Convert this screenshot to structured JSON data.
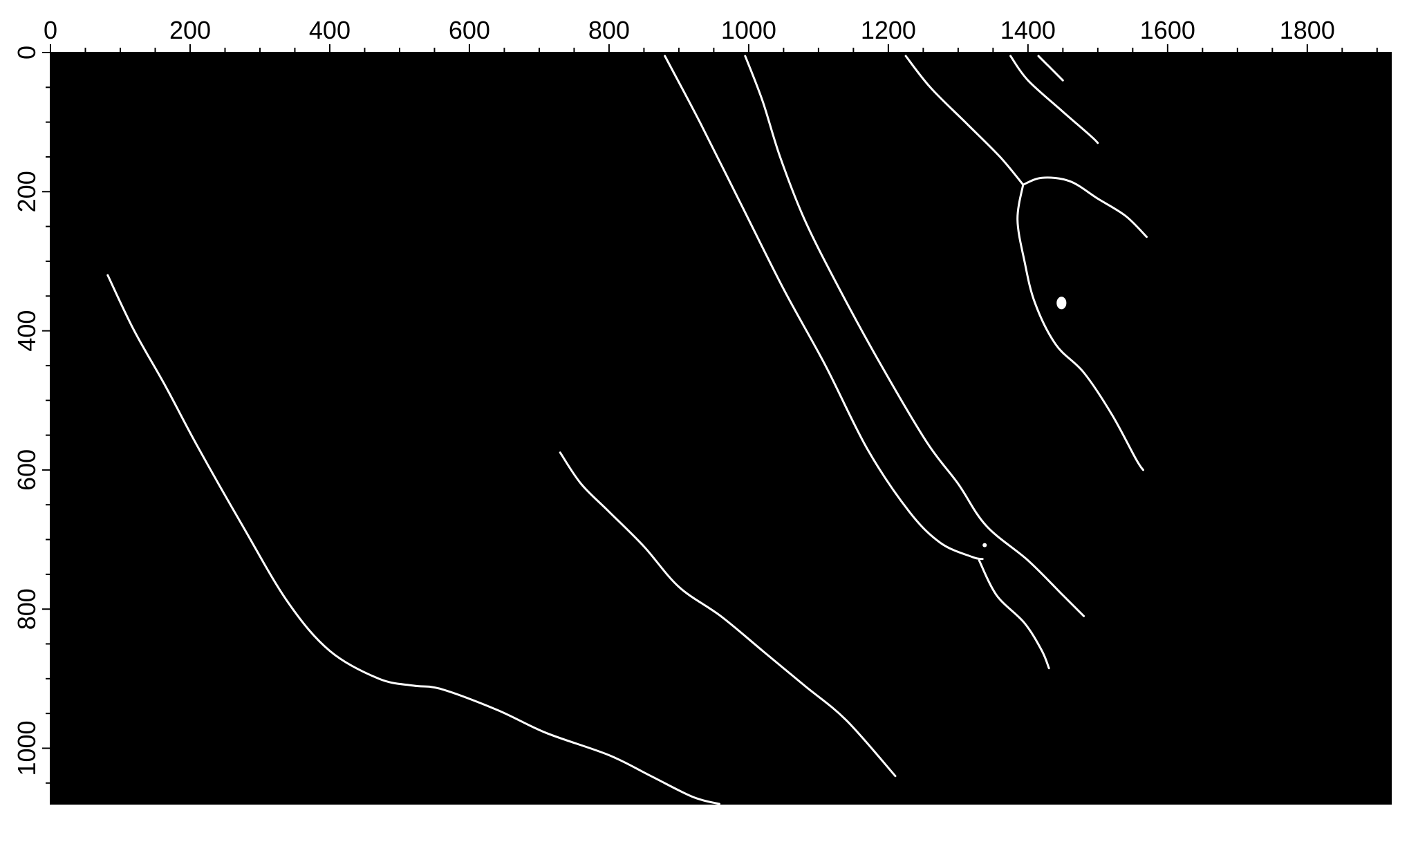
{
  "figure": {
    "type": "binary-edge-image",
    "background_color": "#000000",
    "line_color": "#ffffff",
    "frame_color": "#000000"
  },
  "axes": {
    "x": {
      "range": [
        0,
        1920
      ],
      "major_ticks": [
        0,
        200,
        400,
        600,
        800,
        1000,
        1200,
        1400,
        1600,
        1800
      ],
      "minor_step": 50,
      "labels": [
        "0",
        "200",
        "400",
        "600",
        "800",
        "1000",
        "1200",
        "1400",
        "1600",
        "1800"
      ]
    },
    "y": {
      "range": [
        0,
        1080
      ],
      "major_ticks": [
        0,
        200,
        400,
        600,
        800,
        1000
      ],
      "minor_step": 50,
      "labels": [
        "0",
        "200",
        "400",
        "600",
        "800",
        "1000"
      ]
    }
  },
  "curves": [
    {
      "name": "curve-left-long",
      "points": [
        [
          82,
          320
        ],
        [
          120,
          400
        ],
        [
          165,
          480
        ],
        [
          210,
          565
        ],
        [
          275,
          680
        ],
        [
          340,
          790
        ],
        [
          400,
          860
        ],
        [
          470,
          900
        ],
        [
          520,
          910
        ],
        [
          560,
          915
        ],
        [
          640,
          945
        ],
        [
          710,
          978
        ],
        [
          800,
          1010
        ],
        [
          860,
          1040
        ],
        [
          920,
          1070
        ],
        [
          958,
          1080
        ]
      ]
    },
    {
      "name": "curve-middle",
      "points": [
        [
          730,
          575
        ],
        [
          760,
          620
        ],
        [
          800,
          660
        ],
        [
          850,
          710
        ],
        [
          900,
          768
        ],
        [
          960,
          810
        ],
        [
          1020,
          860
        ],
        [
          1080,
          910
        ],
        [
          1140,
          960
        ],
        [
          1210,
          1040
        ]
      ]
    },
    {
      "name": "curve-upper-left",
      "points": [
        [
          880,
          5
        ],
        [
          930,
          100
        ],
        [
          990,
          220
        ],
        [
          1050,
          340
        ],
        [
          1110,
          450
        ],
        [
          1170,
          570
        ],
        [
          1230,
          660
        ],
        [
          1275,
          705
        ],
        [
          1320,
          725
        ],
        [
          1335,
          728
        ]
      ]
    },
    {
      "name": "curve-upper-second",
      "points": [
        [
          995,
          5
        ],
        [
          1020,
          70
        ],
        [
          1045,
          150
        ],
        [
          1080,
          240
        ],
        [
          1130,
          340
        ],
        [
          1190,
          450
        ],
        [
          1255,
          560
        ],
        [
          1300,
          620
        ],
        [
          1340,
          680
        ],
        [
          1400,
          730
        ],
        [
          1450,
          780
        ],
        [
          1480,
          810
        ]
      ]
    },
    {
      "name": "curve-lower-branch",
      "points": [
        [
          1330,
          730
        ],
        [
          1355,
          780
        ],
        [
          1395,
          820
        ],
        [
          1420,
          860
        ],
        [
          1430,
          885
        ]
      ]
    },
    {
      "name": "curve-upper-third",
      "points": [
        [
          1225,
          5
        ],
        [
          1260,
          50
        ],
        [
          1310,
          100
        ],
        [
          1360,
          150
        ],
        [
          1393,
          190
        ]
      ]
    },
    {
      "name": "curve-loop",
      "points": [
        [
          1393,
          190
        ],
        [
          1385,
          240
        ],
        [
          1395,
          300
        ],
        [
          1410,
          360
        ],
        [
          1440,
          420
        ],
        [
          1480,
          460
        ],
        [
          1520,
          520
        ],
        [
          1555,
          585
        ],
        [
          1565,
          600
        ]
      ]
    },
    {
      "name": "curve-loop-top",
      "points": [
        [
          1393,
          190
        ],
        [
          1420,
          180
        ],
        [
          1460,
          185
        ],
        [
          1500,
          210
        ],
        [
          1540,
          235
        ],
        [
          1570,
          265
        ]
      ]
    },
    {
      "name": "curve-top-right-a",
      "points": [
        [
          1375,
          5
        ],
        [
          1400,
          40
        ],
        [
          1450,
          85
        ],
        [
          1490,
          120
        ],
        [
          1500,
          130
        ]
      ]
    },
    {
      "name": "curve-top-right-b",
      "points": [
        [
          1415,
          5
        ],
        [
          1430,
          20
        ],
        [
          1450,
          40
        ]
      ]
    }
  ],
  "blobs": [
    {
      "name": "blob-small-dot",
      "center": [
        1448,
        360
      ],
      "r": [
        7,
        9
      ]
    },
    {
      "name": "blob-tiny-mark",
      "center": [
        1338,
        708
      ],
      "r": [
        3,
        3
      ]
    }
  ]
}
